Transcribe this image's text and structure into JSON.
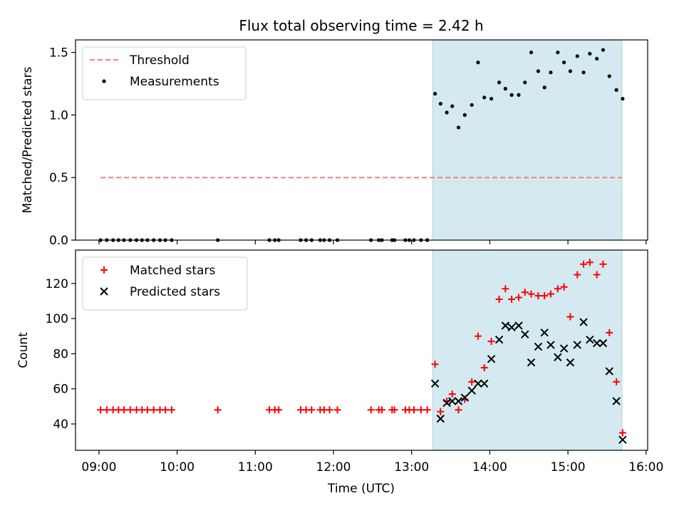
{
  "figure": {
    "title": "Flux total observing time = 2.42 h",
    "xlabel": "Time (UTC)",
    "xticks": [
      {
        "t": 9.0,
        "label": "09:00"
      },
      {
        "t": 10.0,
        "label": "10:00"
      },
      {
        "t": 11.0,
        "label": "11:00"
      },
      {
        "t": 12.0,
        "label": "12:00"
      },
      {
        "t": 13.0,
        "label": "13:00"
      },
      {
        "t": 14.0,
        "label": "14:00"
      },
      {
        "t": 15.0,
        "label": "15:00"
      },
      {
        "t": 16.0,
        "label": "16:00"
      }
    ],
    "xlim": [
      8.7,
      16.02
    ],
    "observing_window": [
      13.27,
      15.69
    ],
    "colors": {
      "window": "#d4eaf0",
      "window_edge": "#a9d3e0",
      "threshold": "#f08080",
      "measurement": "#000000",
      "matched": "#ff0000",
      "predicted": "#000000"
    }
  },
  "chart_data": [
    {
      "type": "scatter",
      "ylabel": "Matched/Predicted stars",
      "ylim": [
        0,
        1.6
      ],
      "yticks": [
        {
          "v": 0.0,
          "label": "0.0"
        },
        {
          "v": 0.5,
          "label": "0.5"
        },
        {
          "v": 1.0,
          "label": "1.0"
        },
        {
          "v": 1.5,
          "label": "1.5"
        }
      ],
      "legend_position": "upper-left",
      "threshold": {
        "name": "Threshold",
        "value": 0.5,
        "x_range": [
          9.02,
          15.69
        ]
      },
      "series": [
        {
          "name": "Measurements",
          "marker": "dot",
          "x": [
            9.02,
            9.1,
            9.18,
            9.25,
            9.32,
            9.4,
            9.48,
            9.55,
            9.62,
            9.7,
            9.78,
            9.85,
            9.93,
            10.52,
            11.18,
            11.25,
            11.3,
            11.58,
            11.65,
            11.72,
            11.83,
            11.88,
            11.95,
            12.05,
            12.48,
            12.58,
            12.62,
            12.75,
            12.78,
            12.92,
            12.97,
            13.03,
            13.12,
            13.2,
            13.3,
            13.37,
            13.45,
            13.52,
            13.6,
            13.68,
            13.77,
            13.85,
            13.93,
            14.02,
            14.12,
            14.2,
            14.28,
            14.37,
            14.45,
            14.53,
            14.62,
            14.7,
            14.78,
            14.87,
            14.95,
            15.03,
            15.12,
            15.2,
            15.28,
            15.37,
            15.45,
            15.53,
            15.62,
            15.7
          ],
          "y": [
            0,
            0,
            0,
            0,
            0,
            0,
            0,
            0,
            0,
            0,
            0,
            0,
            0,
            0,
            0,
            0,
            0,
            0,
            0,
            0,
            0,
            0,
            0,
            0,
            0,
            0,
            0,
            0,
            0,
            0,
            0,
            0,
            0,
            0,
            1.17,
            1.09,
            1.02,
            1.07,
            0.9,
            1.0,
            1.08,
            1.42,
            1.14,
            1.13,
            1.26,
            1.21,
            1.16,
            1.16,
            1.26,
            1.5,
            1.35,
            1.22,
            1.34,
            1.5,
            1.42,
            1.35,
            1.47,
            1.34,
            1.49,
            1.45,
            1.52,
            1.31,
            1.2,
            1.13
          ]
        }
      ]
    },
    {
      "type": "scatter",
      "ylabel": "Count",
      "ylim": [
        25,
        139
      ],
      "yticks": [
        {
          "v": 40,
          "label": "40"
        },
        {
          "v": 60,
          "label": "60"
        },
        {
          "v": 80,
          "label": "80"
        },
        {
          "v": 100,
          "label": "100"
        },
        {
          "v": 120,
          "label": "120"
        }
      ],
      "legend_position": "upper-left",
      "series": [
        {
          "name": "Matched stars",
          "marker": "plus",
          "x": [
            9.02,
            9.1,
            9.18,
            9.25,
            9.32,
            9.4,
            9.48,
            9.55,
            9.62,
            9.7,
            9.78,
            9.85,
            9.93,
            10.52,
            11.18,
            11.25,
            11.3,
            11.58,
            11.65,
            11.72,
            11.83,
            11.88,
            11.95,
            12.05,
            12.48,
            12.58,
            12.62,
            12.75,
            12.78,
            12.92,
            12.97,
            13.03,
            13.12,
            13.2,
            13.3,
            13.37,
            13.45,
            13.52,
            13.6,
            13.68,
            13.77,
            13.85,
            13.93,
            14.02,
            14.12,
            14.2,
            14.28,
            14.37,
            14.45,
            14.53,
            14.62,
            14.7,
            14.78,
            14.87,
            14.95,
            15.03,
            15.12,
            15.2,
            15.28,
            15.37,
            15.45,
            15.53,
            15.62,
            15.7
          ],
          "y": [
            48,
            48,
            48,
            48,
            48,
            48,
            48,
            48,
            48,
            48,
            48,
            48,
            48,
            48,
            48,
            48,
            48,
            48,
            48,
            48,
            48,
            48,
            48,
            48,
            48,
            48,
            48,
            48,
            48,
            48,
            48,
            48,
            48,
            48,
            74,
            47,
            53,
            57,
            48,
            54,
            64,
            90,
            72,
            87,
            111,
            117,
            111,
            112,
            115,
            114,
            113,
            113,
            114,
            117,
            118,
            101,
            125,
            131,
            132,
            125,
            131,
            92,
            64,
            35
          ]
        },
        {
          "name": "Predicted stars",
          "marker": "cross",
          "x": [
            13.3,
            13.37,
            13.45,
            13.52,
            13.6,
            13.68,
            13.77,
            13.85,
            13.93,
            14.02,
            14.12,
            14.2,
            14.28,
            14.37,
            14.45,
            14.53,
            14.62,
            14.7,
            14.78,
            14.87,
            14.95,
            15.03,
            15.12,
            15.2,
            15.28,
            15.37,
            15.45,
            15.53,
            15.62,
            15.7
          ],
          "y": [
            63,
            43,
            52,
            53,
            53,
            55,
            59,
            63,
            63,
            77,
            88,
            96,
            95,
            96,
            91,
            75,
            84,
            92,
            85,
            78,
            83,
            75,
            85,
            98,
            88,
            86,
            86,
            70,
            53,
            31
          ]
        }
      ]
    }
  ]
}
